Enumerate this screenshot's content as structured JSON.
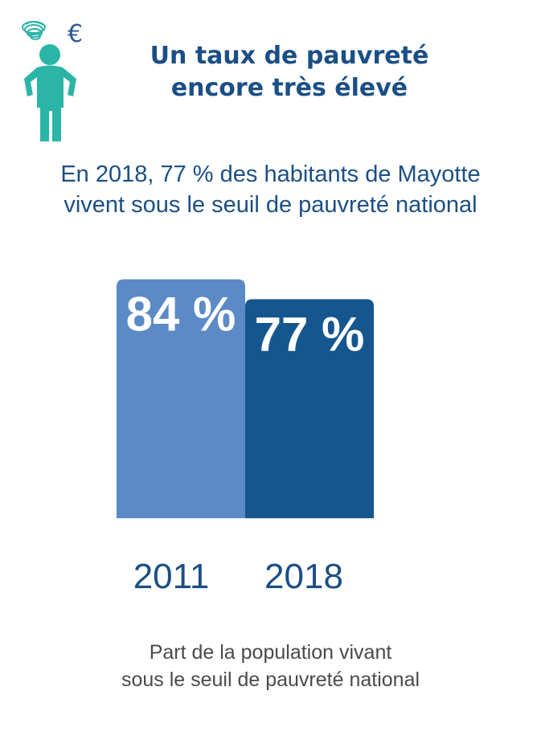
{
  "header": {
    "title_line1": "Un taux de pauvreté",
    "title_line2": "encore très élevé",
    "icon": "worried-person-with-euro-icon",
    "euro_symbol": "€"
  },
  "subtitle": {
    "line1": "En 2018, 77 % des habitants de Mayotte",
    "line2": "vivent sous le seuil de pauvreté national"
  },
  "chart_data": {
    "type": "bar",
    "categories": [
      "2011",
      "2018"
    ],
    "values": [
      84,
      77
    ],
    "value_labels": [
      "84 %",
      "77 %"
    ],
    "title": "",
    "xlabel": "",
    "ylabel": "",
    "ylim": [
      0,
      100
    ],
    "grid": false,
    "colors": [
      "#5b8ac6",
      "#15568f"
    ]
  },
  "caption": {
    "line1": "Part de la population vivant",
    "line2": "sous le seuil de pauvreté national"
  },
  "colors": {
    "title": "#1b4f85",
    "accent_figure": "#2bb5a6",
    "euro": "#2a5a96"
  }
}
